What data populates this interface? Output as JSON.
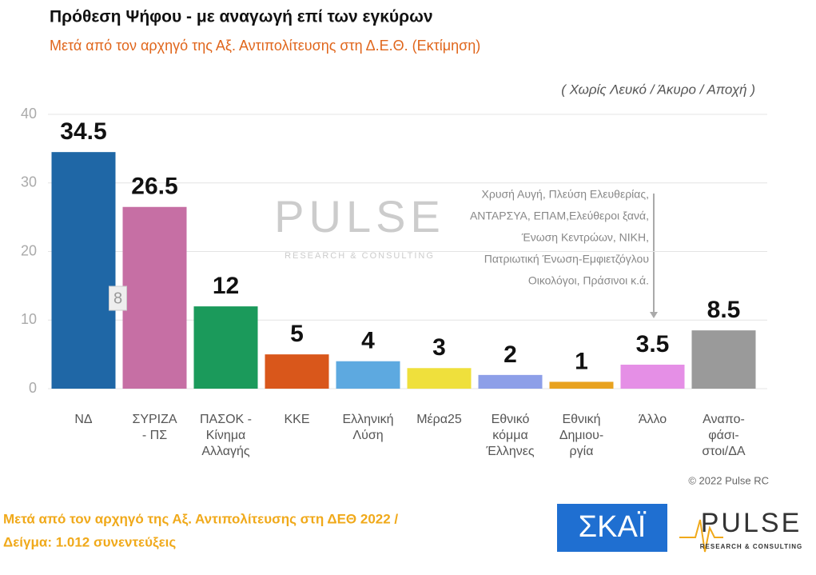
{
  "chart_data": {
    "type": "bar",
    "title": "Πρόθεση Ψήφου - με αναγωγή επί των εγκύρων",
    "subtitle": "Μετά από τον αρχηγό της Αξ. Αντιπολίτευσης στη Δ.Ε.Θ.  (Εκτίμηση)",
    "note": "( Χωρίς Λευκό / Άκυρο / Αποχή )",
    "categories": [
      "ΝΔ",
      "ΣΥΡΙΖΑ\n- ΠΣ",
      "ΠΑΣΟΚ -\nΚίνημα\nΑλλαγής",
      "ΚΚΕ",
      "Ελληνική\nΛύση",
      "Μέρα25",
      "Εθνικό\nκόμμα\nΈλληνες",
      "Εθνική\nΔημιου-\nργία",
      "Άλλο",
      "Αναπο-\nφάσι-\nστοι/ΔΑ"
    ],
    "values": [
      34.5,
      26.5,
      12,
      5,
      4,
      3,
      2,
      1,
      3.5,
      8.5
    ],
    "colors": [
      "#1f67a6",
      "#c66fa4",
      "#1b9a5b",
      "#d9571b",
      "#5da9e0",
      "#efe03c",
      "#8d9fe8",
      "#e8a21f",
      "#e58fe6",
      "#9a9a9a"
    ],
    "ylim": [
      0,
      40
    ],
    "yticks": [
      0,
      10,
      20,
      30,
      40
    ],
    "grid": true,
    "difference": "8",
    "others_note": [
      "Χρυσή Αυγή, Πλεύση Ελευθερίας,",
      "ΑΝΤΑΡΣΥΑ, ΕΠΑΜ,Ελεύθεροι ξανά,",
      "Ένωση Κεντρώων,  ΝΙΚΗ,",
      "Πατριωτική Ένωση-Εμφιετζόγλου",
      "Οικολόγοι, Πράσινοι   κ.ά."
    ],
    "source": "© 2022 Pulse RC",
    "footer": [
      "Μετά από τον αρχηγό της Αξ. Αντιπολίτευσης στη ΔΕΘ  2022  /",
      "Δείγμα:  1.012 συνεντεύξεις"
    ],
    "watermark": [
      "PULSE",
      "RESEARCH & CONSULTING"
    ],
    "logos": [
      "ΣΚΑΪ",
      "PULSE",
      "RESEARCH & CONSULTING"
    ]
  }
}
